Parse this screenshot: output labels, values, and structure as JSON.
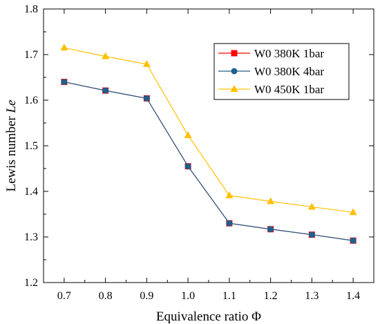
{
  "chart_data": {
    "type": "line",
    "xlabel": "Equivalence ratio Φ",
    "ylabel_main": "Lewis number ",
    "ylabel_italic": "Le",
    "xlim": [
      0.65,
      1.45
    ],
    "ylim": [
      1.2,
      1.8
    ],
    "x_ticks": [
      0.7,
      0.8,
      0.9,
      1.0,
      1.1,
      1.2,
      1.3,
      1.4
    ],
    "x_tick_labels": [
      "0.7",
      "0.8",
      "0.9",
      "1.0",
      "1.1",
      "1.2",
      "1.3",
      "1.4"
    ],
    "y_ticks": [
      1.2,
      1.3,
      1.4,
      1.5,
      1.6,
      1.7,
      1.8
    ],
    "y_tick_labels": [
      "1.2",
      "1.3",
      "1.4",
      "1.5",
      "1.6",
      "1.7",
      "1.8"
    ],
    "grid": false,
    "legend_position": "top-right",
    "x": [
      0.7,
      0.8,
      0.9,
      1.0,
      1.1,
      1.2,
      1.3,
      1.4
    ],
    "series": [
      {
        "name": "W0 380K 1bar",
        "values": [
          1.64,
          1.621,
          1.604,
          1.455,
          1.33,
          1.317,
          1.305,
          1.292
        ],
        "color": "#ff0000",
        "marker": "square"
      },
      {
        "name": "W0 380K 4bar",
        "values": [
          1.64,
          1.621,
          1.604,
          1.455,
          1.33,
          1.317,
          1.305,
          1.292
        ],
        "color": "#1f5f8b",
        "marker": "circle"
      },
      {
        "name": "W0 450K 1bar",
        "values": [
          1.715,
          1.696,
          1.679,
          1.523,
          1.391,
          1.378,
          1.366,
          1.354
        ],
        "color": "#ffc000",
        "marker": "triangle"
      }
    ]
  }
}
